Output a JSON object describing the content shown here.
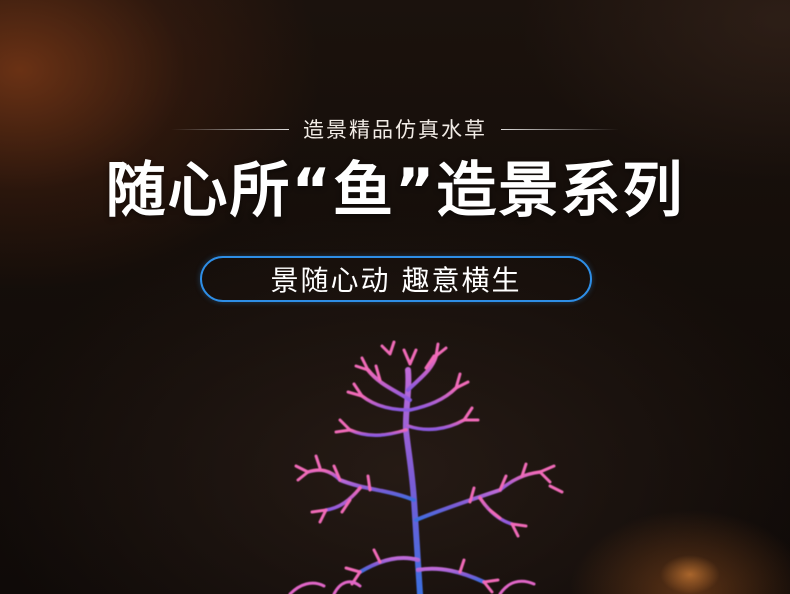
{
  "header": {
    "subtitle": "造景精品仿真水草",
    "title": "随心所“鱼”造景系列",
    "slogan": "景随心动 趣意横生"
  },
  "colors": {
    "pill_border": "#2e8ee6",
    "plant_pink": "#f06ab8",
    "plant_purple": "#7a5cd6",
    "plant_blue": "#3b6fe0"
  }
}
